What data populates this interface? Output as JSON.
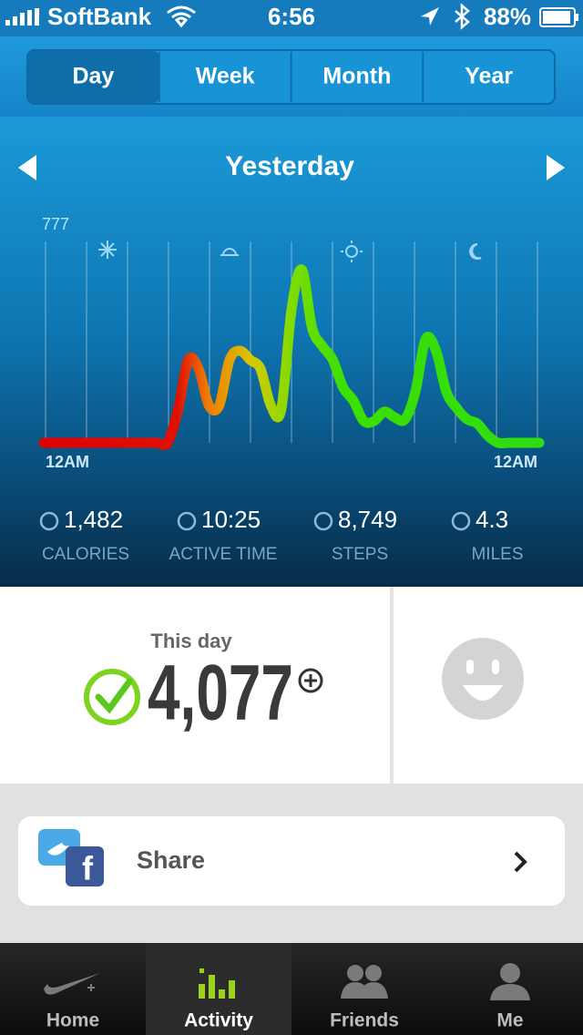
{
  "status_bar": {
    "carrier": "SoftBank",
    "time": "6:56",
    "battery": "88%"
  },
  "period_tabs": {
    "items": [
      "Day",
      "Week",
      "Month",
      "Year"
    ],
    "selected": "Day"
  },
  "date_label": "Yesterday",
  "chart": {
    "type": "line",
    "ylim": [
      0,
      777
    ],
    "yticks": [
      777
    ],
    "xtick_labels": [
      "12AM",
      "12AM"
    ],
    "values": [
      0,
      0,
      0,
      0,
      0,
      0,
      0,
      0,
      0,
      0,
      0,
      0,
      0,
      127,
      320,
      285,
      144,
      144,
      320,
      355,
      320,
      285,
      144,
      127,
      513,
      668,
      443,
      373,
      320,
      214,
      162,
      84,
      84,
      120,
      98,
      91,
      197,
      401,
      355,
      197,
      134,
      91,
      74,
      28,
      0,
      0,
      0,
      0,
      0
    ]
  },
  "stats": [
    {
      "value": "1,482",
      "label": "CALORIES"
    },
    {
      "value": "10:25",
      "label": "ACTIVE TIME"
    },
    {
      "value": "8,749",
      "label": "STEPS"
    },
    {
      "value": "4.3",
      "label": "MILES"
    }
  ],
  "summary": {
    "title": "This day",
    "value": "4,077"
  },
  "share": {
    "label": "Share"
  },
  "tab_bar": {
    "items": [
      "Home",
      "Activity",
      "Friends",
      "Me"
    ],
    "selected": "Activity"
  }
}
